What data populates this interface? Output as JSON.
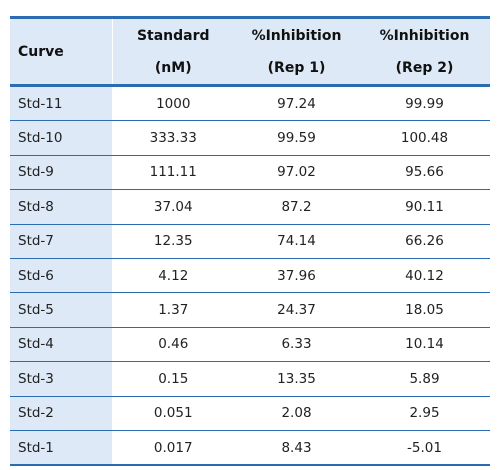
{
  "headers": {
    "curve": "Curve",
    "standard": [
      "Standard",
      "(nM)"
    ],
    "rep1": [
      "%Inhibition",
      "(Rep 1)"
    ],
    "rep2": [
      "%Inhibition",
      "(Rep 2)"
    ]
  },
  "rows": [
    {
      "curve": "Std-11",
      "standard": "1000",
      "rep1": "97.24",
      "rep2": "99.99"
    },
    {
      "curve": "Std-10",
      "standard": "333.33",
      "rep1": "99.59",
      "rep2": "100.48"
    },
    {
      "curve": "Std-9",
      "standard": "111.11",
      "rep1": "97.02",
      "rep2": "95.66"
    },
    {
      "curve": "Std-8",
      "standard": "37.04",
      "rep1": "87.2",
      "rep2": "90.11"
    },
    {
      "curve": "Std-7",
      "standard": "12.35",
      "rep1": "74.14",
      "rep2": "66.26"
    },
    {
      "curve": "Std-6",
      "standard": "4.12",
      "rep1": "37.96",
      "rep2": "40.12"
    },
    {
      "curve": "Std-5",
      "standard": "1.37",
      "rep1": "24.37",
      "rep2": "18.05"
    },
    {
      "curve": "Std-4",
      "standard": "0.46",
      "rep1": "6.33",
      "rep2": "10.14"
    },
    {
      "curve": "Std-3",
      "standard": "0.15",
      "rep1": "13.35",
      "rep2": "5.89"
    },
    {
      "curve": "Std-2",
      "standard": "0.051",
      "rep1": "2.08",
      "rep2": "2.95"
    },
    {
      "curve": "Std-1",
      "standard": "0.017",
      "rep1": "8.43",
      "rep2": "-5.01"
    }
  ],
  "colors": {
    "header_bg": "#dde9f7",
    "rule": "#2b6cb0"
  }
}
